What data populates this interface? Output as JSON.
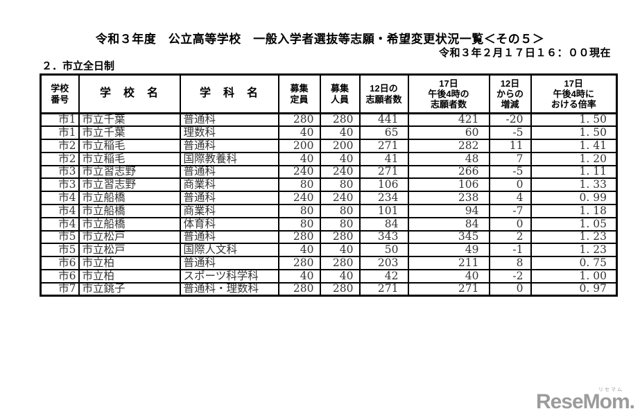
{
  "page": {
    "title": "令和３年度　公立高等学校　一般入学者選抜等志願・希望変更状況一覧＜その５＞",
    "timestamp": "令和３年２月１７日１６：００現在",
    "section": "２．市立全日制"
  },
  "table": {
    "headers": [
      "学校\n番号",
      "学　校　名",
      "学　科　名",
      "募集\n定員",
      "募集\n人員",
      "12日の\n志願者数",
      "17日\n午後4時の\n志願者数",
      "12日\nからの\n増減",
      "17日\n午後4時に\nおける倍率"
    ],
    "rows": [
      [
        "市1",
        "市立千葉",
        "普通科",
        "280",
        "280",
        "441",
        "421",
        "-20",
        "1. 50"
      ],
      [
        "市1",
        "市立千葉",
        "理数科",
        "40",
        "40",
        "65",
        "60",
        "-5",
        "1. 50"
      ],
      [
        "市2",
        "市立稲毛",
        "普通科",
        "200",
        "200",
        "271",
        "282",
        "11",
        "1. 41"
      ],
      [
        "市2",
        "市立稲毛",
        "国際教養科",
        "40",
        "40",
        "41",
        "48",
        "7",
        "1. 20"
      ],
      [
        "市3",
        "市立習志野",
        "普通科",
        "240",
        "240",
        "271",
        "266",
        "-5",
        "1. 11"
      ],
      [
        "市3",
        "市立習志野",
        "商業科",
        "80",
        "80",
        "106",
        "106",
        "0",
        "1. 33"
      ],
      [
        "市4",
        "市立船橋",
        "普通科",
        "240",
        "240",
        "234",
        "238",
        "4",
        "0. 99"
      ],
      [
        "市4",
        "市立船橋",
        "商業科",
        "80",
        "80",
        "101",
        "94",
        "-7",
        "1. 18"
      ],
      [
        "市4",
        "市立船橋",
        "体育科",
        "80",
        "80",
        "84",
        "84",
        "0",
        "1. 05"
      ],
      [
        "市5",
        "市立松戸",
        "普通科",
        "280",
        "280",
        "343",
        "345",
        "2",
        "1. 23"
      ],
      [
        "市5",
        "市立松戸",
        "国際人文科",
        "40",
        "40",
        "50",
        "49",
        "-1",
        "1. 23"
      ],
      [
        "市6",
        "市立柏",
        "普通科",
        "280",
        "280",
        "203",
        "211",
        "8",
        "0. 75"
      ],
      [
        "市6",
        "市立柏",
        "スポーツ科学科",
        "40",
        "40",
        "42",
        "40",
        "-2",
        "1. 00"
      ],
      [
        "市7",
        "市立銚子",
        "普通科・理数科",
        "280",
        "280",
        "271",
        "271",
        "0",
        "0. 97"
      ]
    ]
  },
  "logo": {
    "text": "ReseMom.",
    "ruby": "リセマム",
    "color": "#9b9b9b"
  }
}
